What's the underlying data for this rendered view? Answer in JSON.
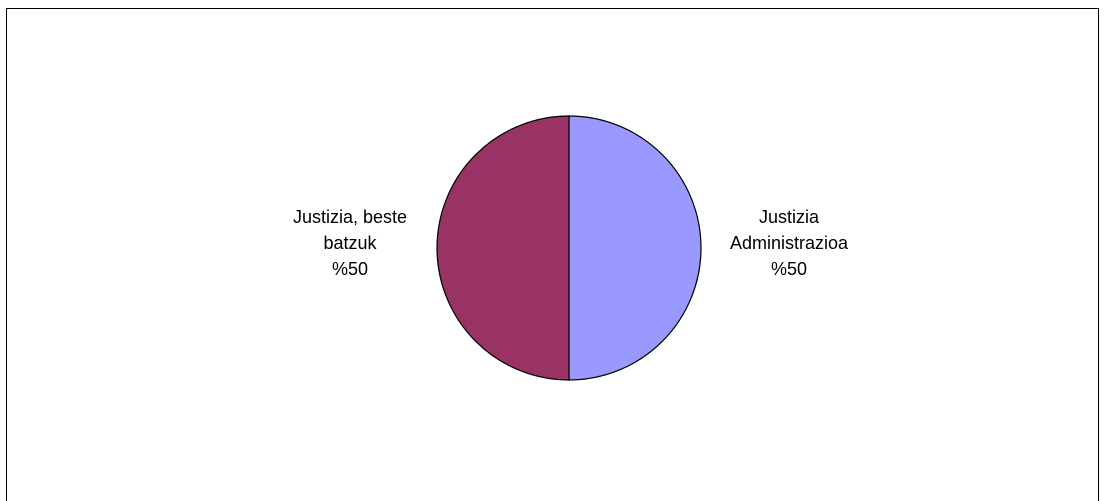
{
  "chart_data": {
    "type": "pie",
    "title": "",
    "slices": [
      {
        "label_lines": [
          "Justizia",
          "Administrazioa",
          "%50"
        ],
        "value": 50,
        "color": "#9999ff"
      },
      {
        "label_lines": [
          "Justizia, beste",
          "batzuk",
          "%50"
        ],
        "value": 50,
        "color": "#993366"
      }
    ],
    "legend": "none"
  }
}
